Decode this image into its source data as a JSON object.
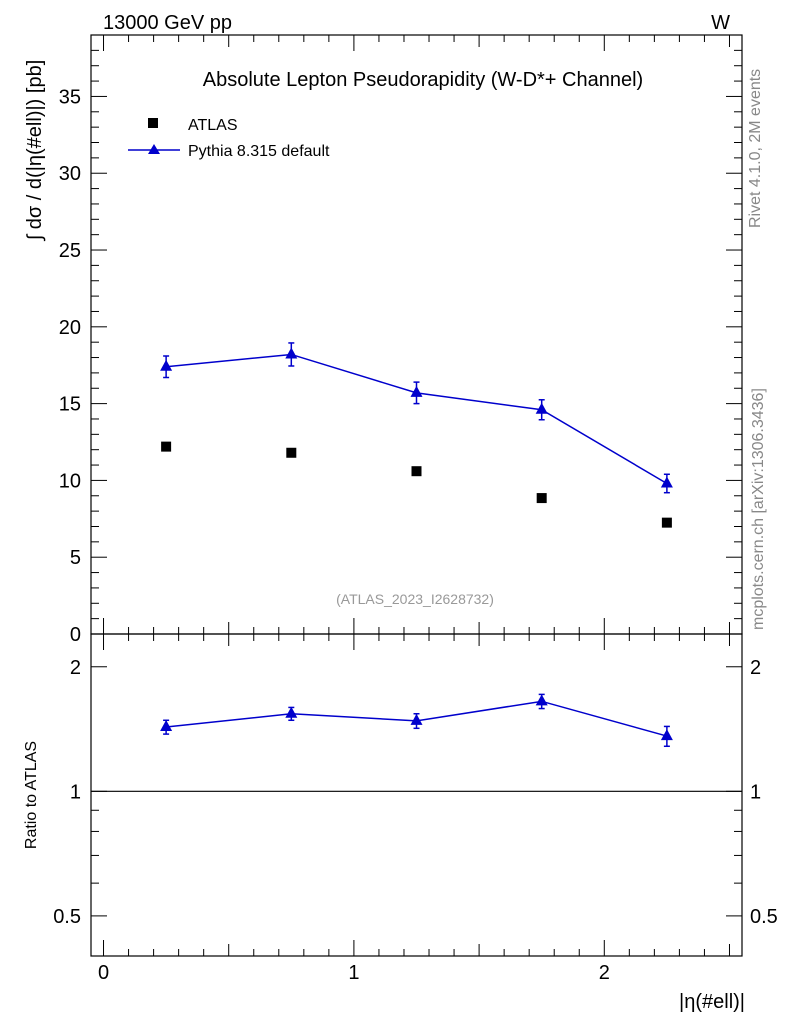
{
  "header": {
    "energy": "13000 GeV pp",
    "process": "W"
  },
  "side_labels": {
    "rivet": "Rivet 4.1.0,  2M events",
    "mcplots": "mcplots.cern.ch [arXiv:1306.3436]"
  },
  "chart_data": [
    {
      "type": "scatter",
      "panel": "main",
      "title": "Absolute Lepton Pseudorapidity (W-D*+ Channel)",
      "ylabel": "∫ dσ / d(|η(#ell)|) [pb]",
      "xlim": [
        -0.05,
        2.55
      ],
      "ylim": [
        0,
        39
      ],
      "yticks": [
        0,
        5,
        10,
        15,
        20,
        25,
        30,
        35
      ],
      "legend_position": "top-left",
      "watermark": "(ATLAS_2023_I2628732)",
      "x": [
        0.25,
        0.75,
        1.25,
        1.75,
        2.25
      ],
      "series": [
        {
          "name": "ATLAS",
          "marker": "square",
          "color": "#000000",
          "values": [
            12.2,
            11.8,
            10.6,
            8.85,
            7.25
          ]
        },
        {
          "name": "Pythia 8.315 default",
          "marker": "triangle",
          "color": "#0000cc",
          "values": [
            17.4,
            18.2,
            15.7,
            14.6,
            9.8
          ],
          "errors": [
            0.7,
            0.75,
            0.7,
            0.65,
            0.6
          ]
        }
      ]
    },
    {
      "type": "line",
      "panel": "ratio",
      "ylabel": "Ratio to ATLAS",
      "xlabel": "|η(#ell)|",
      "xlim": [
        -0.05,
        2.55
      ],
      "ylim": [
        0.4,
        2.4
      ],
      "ylog": true,
      "yticks": [
        0.5,
        1,
        2
      ],
      "xticks": [
        0,
        1,
        2
      ],
      "reference": 1,
      "x": [
        0.25,
        0.75,
        1.25,
        1.75,
        2.25
      ],
      "series": [
        {
          "name": "Pythia 8.315 default",
          "color": "#0000cc",
          "values": [
            1.43,
            1.54,
            1.48,
            1.65,
            1.36
          ],
          "errors": [
            0.055,
            0.055,
            0.06,
            0.065,
            0.075
          ]
        }
      ]
    }
  ]
}
